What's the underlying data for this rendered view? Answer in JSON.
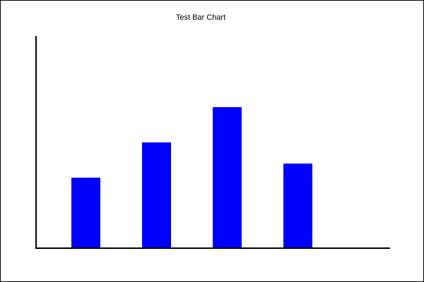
{
  "chart_data": {
    "type": "bar",
    "title": "Test Bar Chart",
    "xlabel": "",
    "ylabel": "",
    "categories": [
      "",
      "",
      "",
      ""
    ],
    "values": [
      10,
      15,
      20,
      12
    ],
    "ylim": [
      0,
      30
    ],
    "grid": false,
    "colors": {
      "bar": "#0000ff",
      "axis": "#000000",
      "background": "#ffffff"
    }
  }
}
